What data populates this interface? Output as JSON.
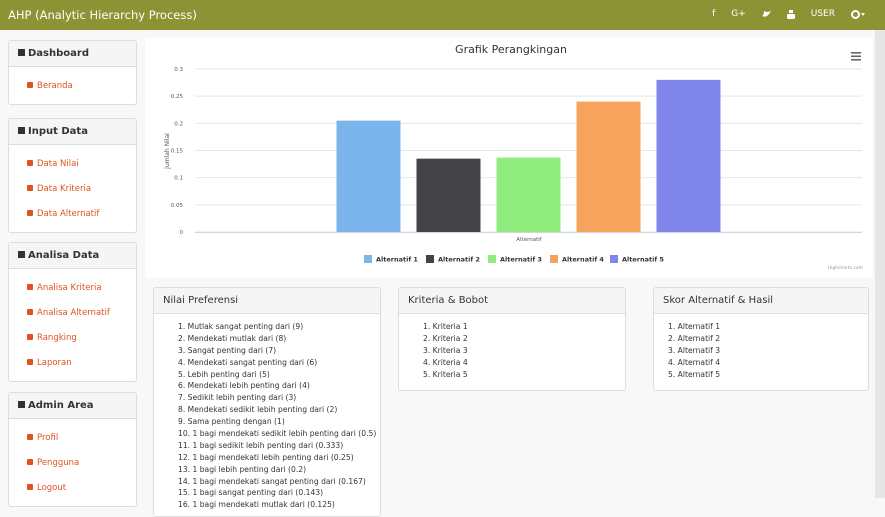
{
  "navbar": {
    "brand": "AHP (Analytic Hierarchy Process)",
    "links": [
      "f",
      "G+",
      "USER"
    ]
  },
  "sidebar": [
    {
      "title": "Dashboard",
      "items": [
        "Beranda"
      ]
    },
    {
      "title": "Input Data",
      "items": [
        "Data Nilai",
        "Data Kriteria",
        "Data Alternatif"
      ]
    },
    {
      "title": "Analisa Data",
      "items": [
        "Analisa Kriteria",
        "Analisa Alternatif",
        "Rangking",
        "Laporan"
      ]
    },
    {
      "title": "Admin Area",
      "items": [
        "Profil",
        "Pengguna",
        "Logout"
      ]
    }
  ],
  "chart_data": {
    "type": "bar",
    "title": "Grafik Perangkingan",
    "y_label": "Jumlah Nilai",
    "x_label": "Alternatif",
    "credit": "Highcharts.com",
    "categories": [
      "Alternatif"
    ],
    "series": [
      {
        "name": "Alternatif 1",
        "color": "#7cb5ec",
        "values": [
          0.205
        ]
      },
      {
        "name": "Alternatif 2",
        "color": "#434348",
        "values": [
          0.135
        ]
      },
      {
        "name": "Alternatif 3",
        "color": "#90ed7d",
        "values": [
          0.137
        ]
      },
      {
        "name": "Alternatif 4",
        "color": "#f7a35c",
        "values": [
          0.24
        ]
      },
      {
        "name": "Alternatif 5",
        "color": "#8085e9",
        "values": [
          0.28
        ]
      }
    ],
    "ylim": [
      0,
      0.3
    ],
    "yticks": [
      0,
      0.05,
      0.1,
      0.15,
      0.2,
      0.25,
      0.3
    ],
    "grid": true,
    "legend": "bottom"
  },
  "panels": [
    {
      "title": "Nilai Preferensi",
      "items": [
        "1. Mutlak sangat penting dari (9)",
        "2. Mendekati mutlak dari (8)",
        "3. Sangat penting dari (7)",
        "4. Mendekati sangat penting dari (6)",
        "5. Lebih penting dari (5)",
        "6. Mendekati lebih penting dari (4)",
        "7. Sedikit lebih penting dari (3)",
        "8. Mendekati sedikit lebih penting dari (2)",
        "9. Sama penting dengan (1)",
        "10. 1 bagi mendekati sedikit lebih penting dari (0.5)",
        "11. 1 bagi sedikit lebih penting dari (0.333)",
        "12. 1 bagi mendekati lebih penting dari (0.25)",
        "13. 1 bagi lebih penting dari (0.2)",
        "14. 1 bagi mendekati sangat penting dari (0.167)",
        "15. 1 bagi sangat penting dari (0.143)",
        "16. 1 bagi mendekati mutlak dari (0.125)"
      ]
    },
    {
      "title": "Kriteria & Bobot",
      "items": [
        "1. Kriteria 1",
        "2. Kriteria 2",
        "3. Kriteria 3",
        "4. Kriteria 4",
        "5. Kriteria 5"
      ]
    },
    {
      "title": "Skor Alternatif & Hasil",
      "items": [
        "1. Alternatif 1",
        "2. Alternatif 2",
        "3. Alternatif 3",
        "4. Alternatif 4",
        "5. Alternatif 5"
      ]
    }
  ]
}
